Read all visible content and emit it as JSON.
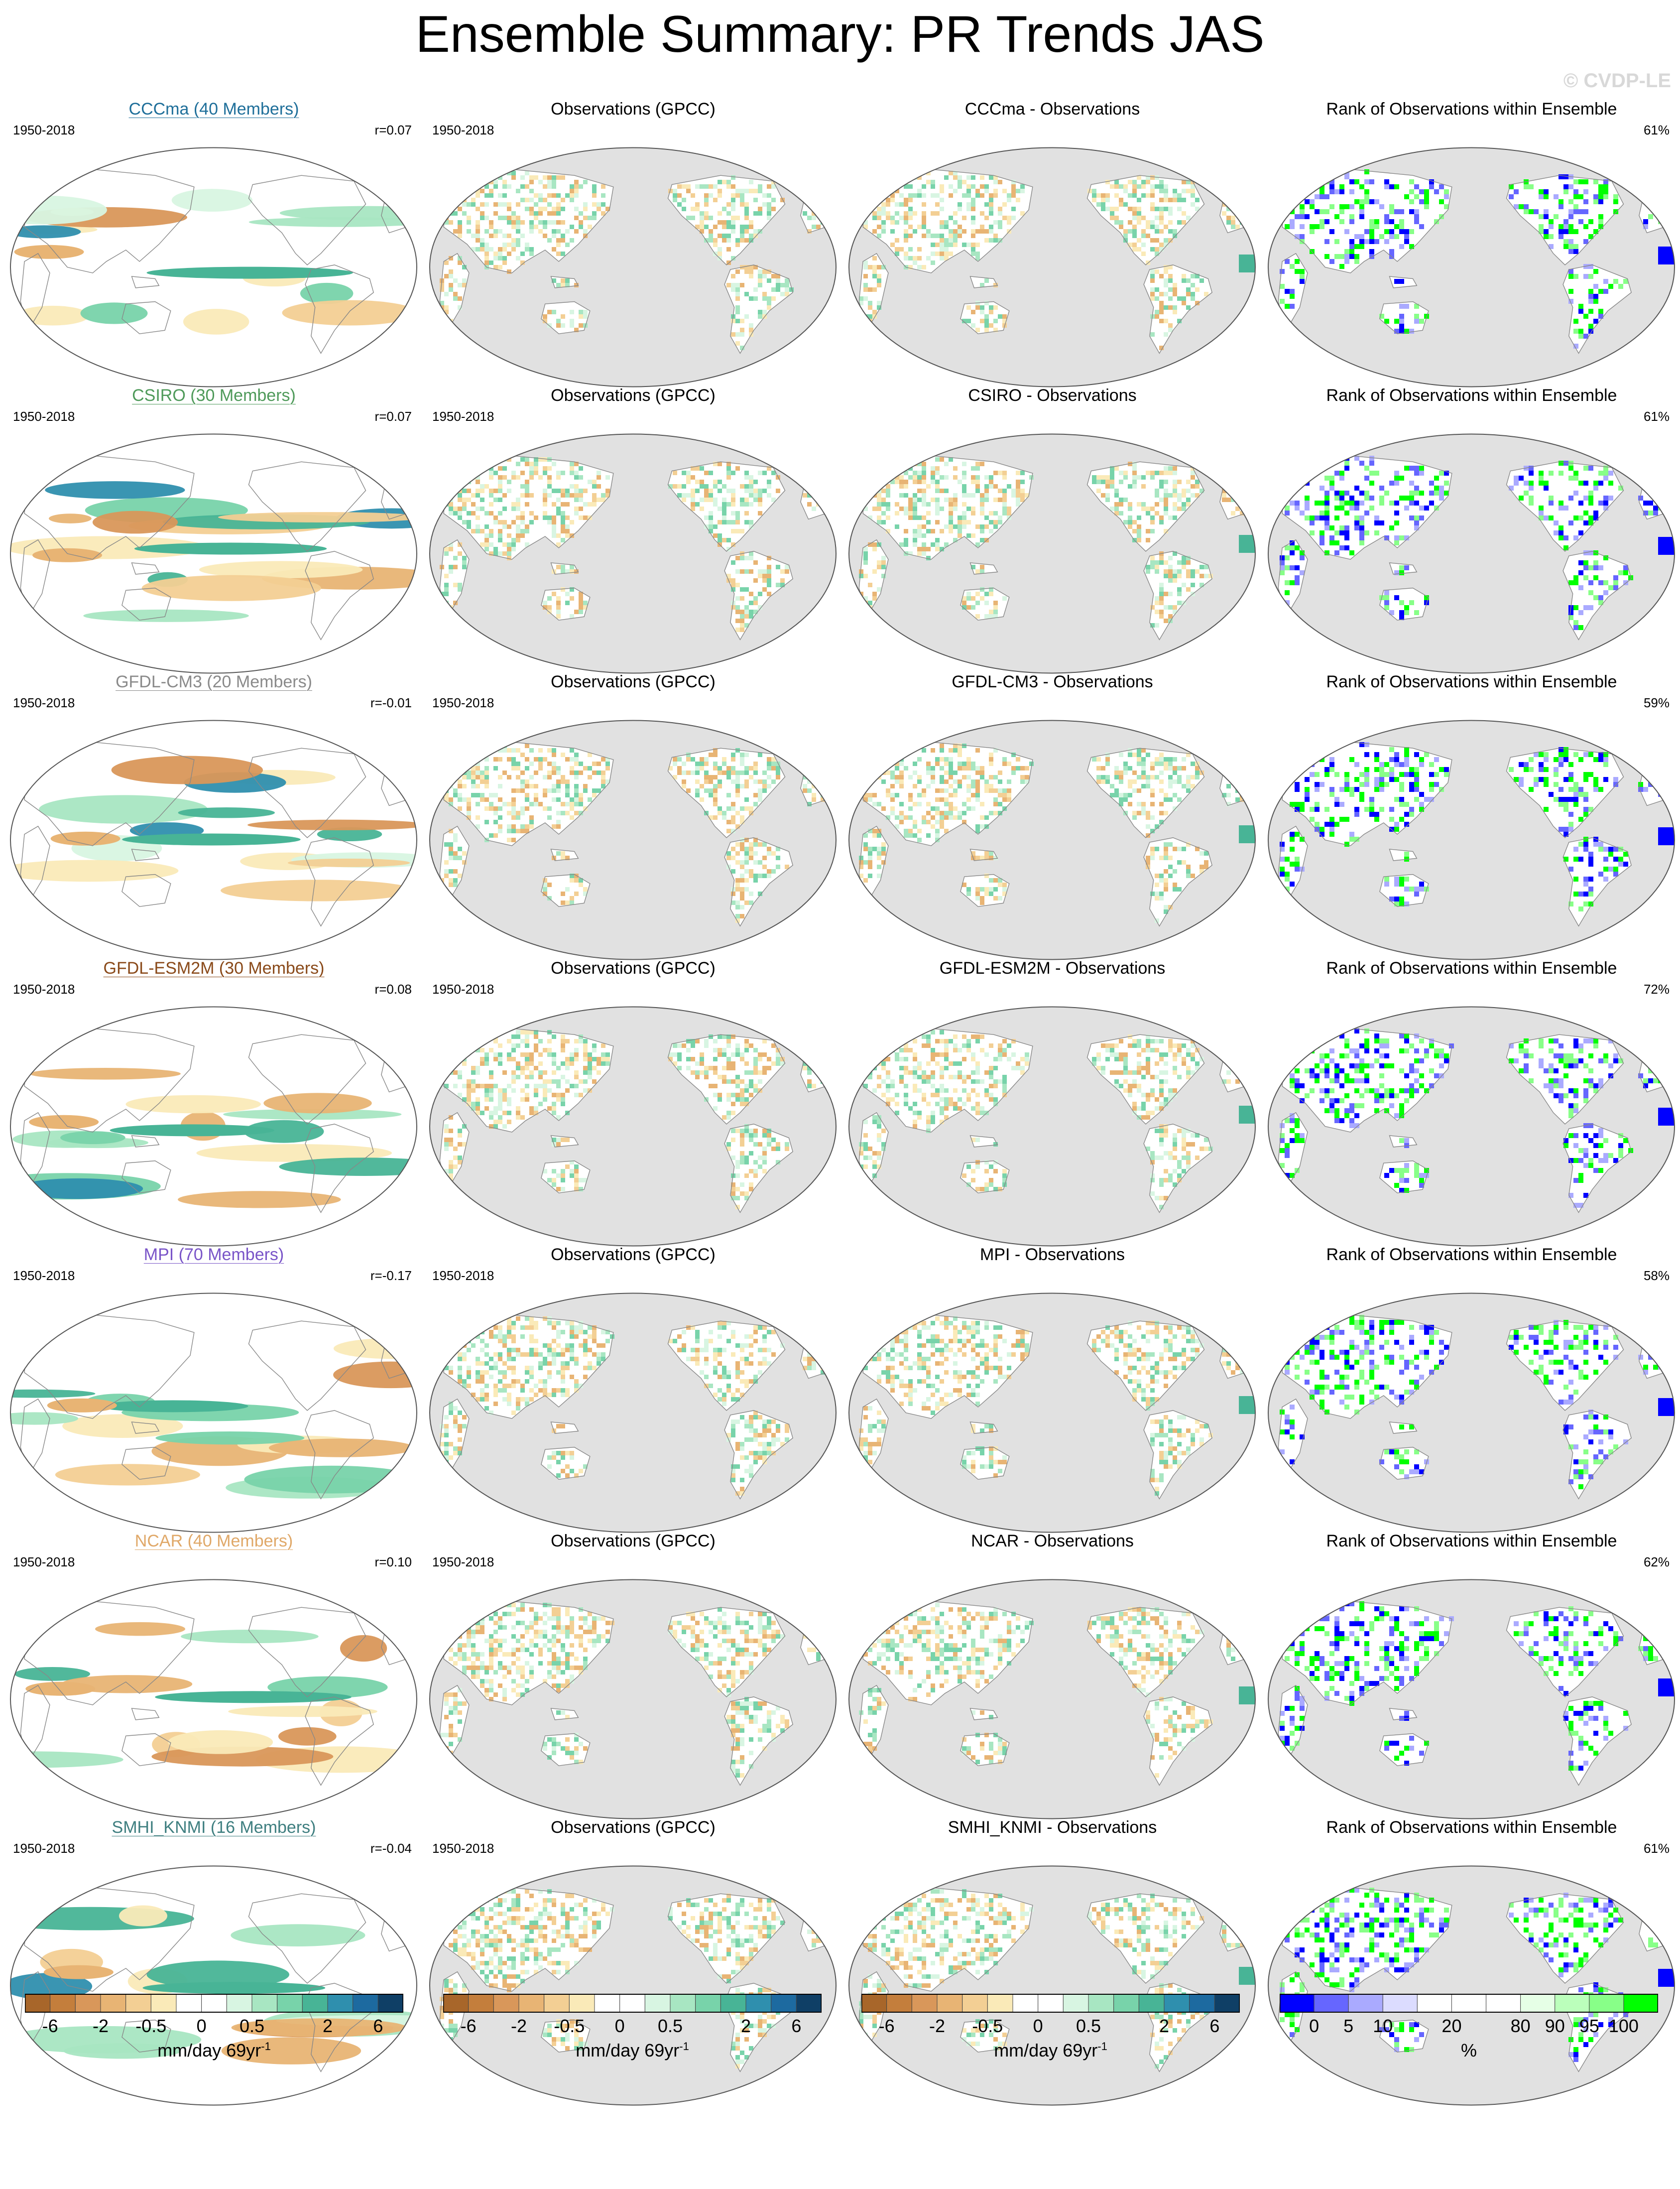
{
  "title": "Ensemble Summary: PR Trends JAS",
  "copyright": "© CVDP-LE",
  "column_headers": {
    "obs": "Observations (GPCC)",
    "rank": "Rank of Observations within Ensemble",
    "diff_suffix": " - Observations"
  },
  "period": "1950-2018",
  "rows": [
    {
      "model": "CCCma (40 Members)",
      "name": "CCCma",
      "model_color": "#1f6f9a",
      "r": "r=0.07",
      "diff_title": "CCCma - Observations",
      "rank_pct": "61%"
    },
    {
      "model": "CSIRO (30 Members)",
      "name": "CSIRO",
      "model_color": "#4f9a5a",
      "r": "r=0.07",
      "diff_title": "CSIRO - Observations",
      "rank_pct": "61%"
    },
    {
      "model": "GFDL-CM3 (20 Members)",
      "name": "GFDL-CM3",
      "model_color": "#8a8a8a",
      "r": "r=-0.01",
      "diff_title": "GFDL-CM3 - Observations",
      "rank_pct": "59%"
    },
    {
      "model": "GFDL-ESM2M (30 Members)",
      "name": "GFDL-ESM2M",
      "model_color": "#8a4a1a",
      "r": "r=0.08",
      "diff_title": "GFDL-ESM2M - Observations",
      "rank_pct": "72%"
    },
    {
      "model": "MPI (70 Members)",
      "name": "MPI",
      "model_color": "#7a55c8",
      "r": "r=-0.17",
      "diff_title": "MPI - Observations",
      "rank_pct": "58%"
    },
    {
      "model": "NCAR (40 Members)",
      "name": "NCAR",
      "model_color": "#e0a868",
      "r": "r=0.10",
      "diff_title": "NCAR - Observations",
      "rank_pct": "62%"
    },
    {
      "model": "SMHI_KNMI (16 Members)",
      "name": "SMHI_KNMI",
      "model_color": "#3f7f80",
      "r": "r=-0.04",
      "diff_title": "SMHI_KNMI - Observations",
      "rank_pct": "61%"
    }
  ],
  "colorbar_trend": {
    "colors": [
      "#a8662a",
      "#c47e3c",
      "#d9975a",
      "#e8b474",
      "#f3cf94",
      "#faeab8",
      "#ffffff",
      "#ffffff",
      "#d8f5e2",
      "#a8e6c2",
      "#78d3aa",
      "#48b496",
      "#2f8fae",
      "#1d6aa0",
      "#0f3f66"
    ],
    "labels": [
      "-6",
      "-2",
      "-0.5",
      "0",
      "0.5",
      "2",
      "6"
    ],
    "unit": "mm/day 69yr",
    "unit_sup": "-1"
  },
  "colorbar_rank": {
    "colors": [
      "#0000ff",
      "#6666ff",
      "#aaaaff",
      "#dcdcff",
      "#ffffff",
      "#ffffff",
      "#ffffff",
      "#e6ffe6",
      "#bbffbb",
      "#88ff88",
      "#00ff00"
    ],
    "labels": [
      "0",
      "5",
      "10",
      "20",
      "80",
      "90",
      "95",
      "100"
    ],
    "unit": "%"
  },
  "map_colors": {
    "ocean_obs": "#e1e1e1",
    "land": "#ffffff",
    "coast": "#888888",
    "wet": [
      "#d8f5e2",
      "#a8e6c2",
      "#78d3aa",
      "#48b496",
      "#2f8fae"
    ],
    "dry": [
      "#faeab8",
      "#f3cf94",
      "#e8b474",
      "#d9975a"
    ],
    "rank_blue": [
      "#0000ff",
      "#6666ff",
      "#aaaaff"
    ],
    "rank_green": [
      "#00ff00",
      "#88ff88"
    ]
  }
}
